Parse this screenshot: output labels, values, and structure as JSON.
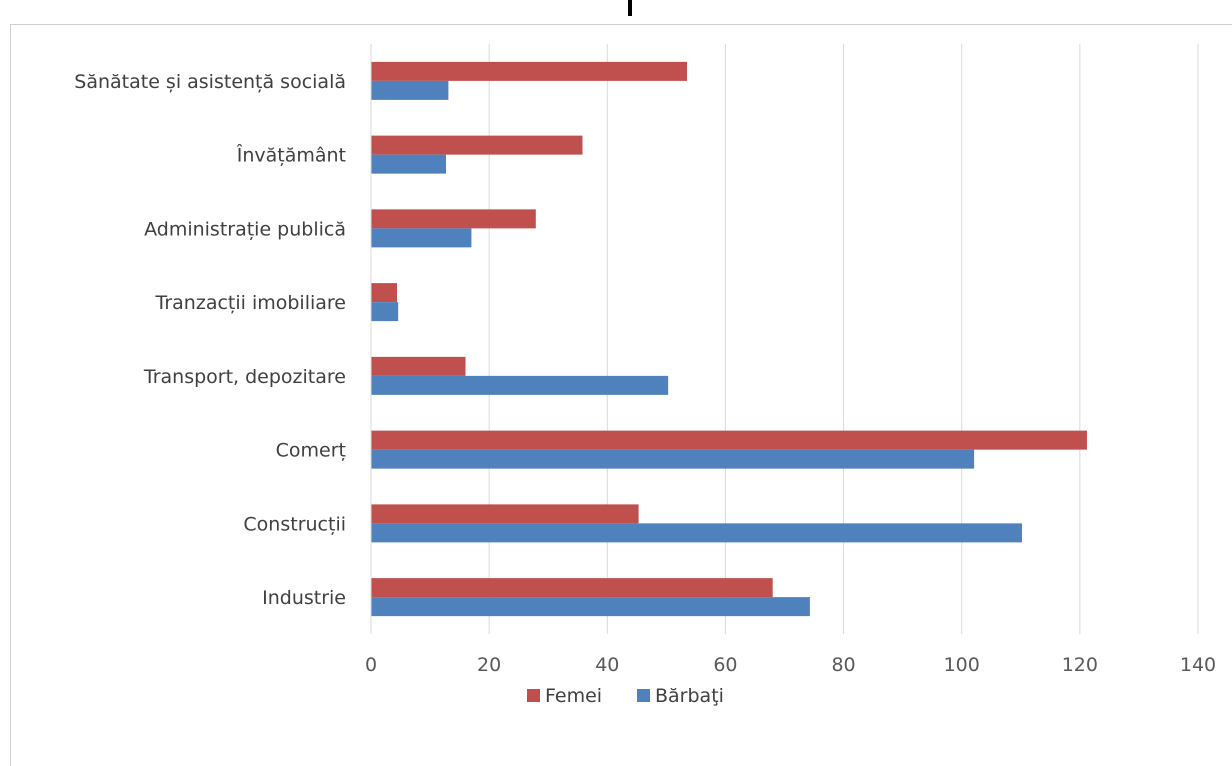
{
  "chart_data": {
    "type": "bar",
    "orientation": "horizontal",
    "categories": [
      "Sănătate și asistență socială",
      "Învățământ",
      "Administrație publică",
      "Tranzacții imobiliare",
      "Transport, depozitare",
      "Comerț",
      "Construcții",
      "Industrie"
    ],
    "series": [
      {
        "name": "Femei",
        "color": "#c0504d",
        "values": [
          53.5,
          35.8,
          27.9,
          4.4,
          16.0,
          121.2,
          45.3,
          68.0
        ]
      },
      {
        "name": "Bărbaţi",
        "color": "#4f81bd",
        "values": [
          13.1,
          12.7,
          17.0,
          4.6,
          50.3,
          102.1,
          110.2,
          74.3
        ]
      }
    ],
    "xticks": [
      "0",
      "20",
      "40",
      "60",
      "80",
      "100",
      "120",
      "140"
    ],
    "xlim": [
      0,
      140
    ],
    "grid": true,
    "legend_position": "bottom"
  }
}
